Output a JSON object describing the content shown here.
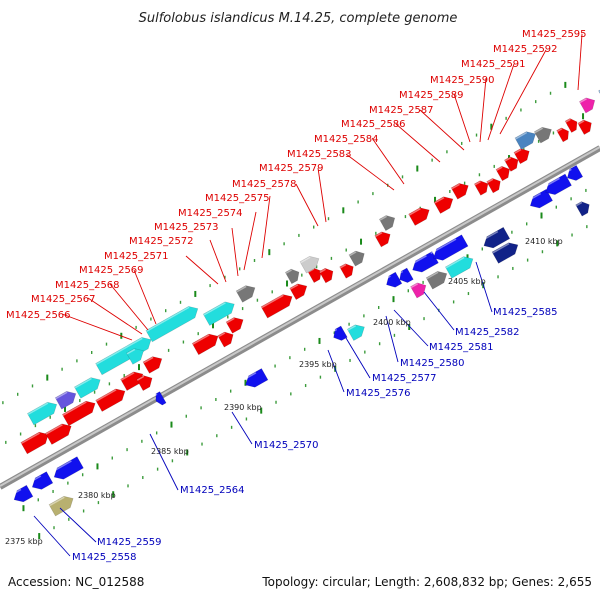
{
  "title": "Sulfolobus islandicus M.14.25, complete genome",
  "footer": {
    "accession": "Accession: NC_012588",
    "summary": "Topology: circular; Length: 2,608,832 bp; Genes: 2,655"
  },
  "colors": {
    "backbone": "#999999",
    "forward_label": "#dd0000",
    "reverse_label": "#0000bb",
    "tick": "#1a8a1a",
    "red": "#ee0000",
    "blue": "#1111ee",
    "cyan": "#22dddd",
    "purple": "#6655dd",
    "gray": "#777777",
    "lightgray": "#cccccc",
    "steel": "#4a84c0",
    "pink": "#ee22aa",
    "navy": "#112288",
    "olive": "#b8b070"
  },
  "kbp_labels": [
    "2375 kbp",
    "2380 kbp",
    "2385 kbp",
    "2390 kbp",
    "2395 kbp",
    "2400 kbp",
    "2405 kbp",
    "2410 kbp"
  ],
  "forward_labels": [
    "M1425_2566",
    "M1425_2567",
    "M1425_2568",
    "M1425_2569",
    "M1425_2571",
    "M1425_2572",
    "M1425_2573",
    "M1425_2574",
    "M1425_2575",
    "M1425_2578",
    "M1425_2579",
    "M1425_2583",
    "M1425_2584",
    "M1425_2586",
    "M1425_2587",
    "M1425_2589",
    "M1425_2590",
    "M1425_2591",
    "M1425_2592",
    "M1425_2595"
  ],
  "reverse_labels": [
    "M1425_2558",
    "M1425_2559",
    "M1425_2564",
    "M1425_2570",
    "M1425_2576",
    "M1425_2577",
    "M1425_2580",
    "M1425_2581",
    "M1425_2582",
    "M1425_2585"
  ]
}
